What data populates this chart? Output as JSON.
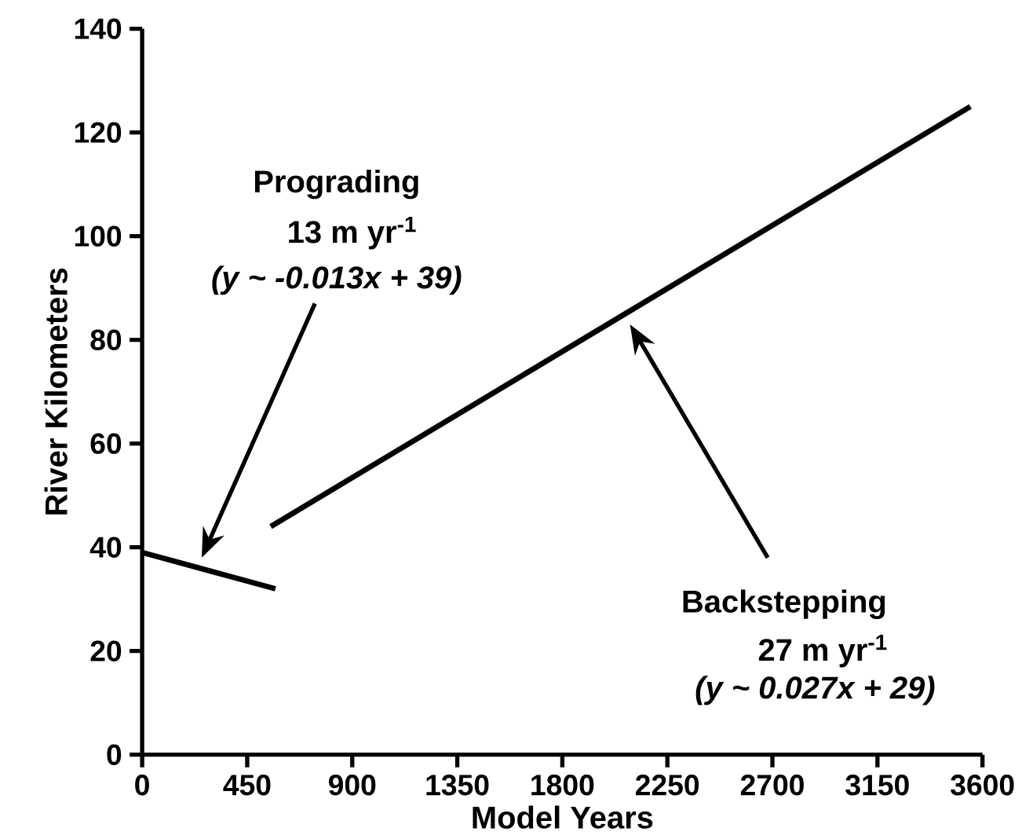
{
  "chart_data": {
    "type": "line",
    "xlabel": "Model Years",
    "ylabel": "River Kilometers",
    "series": [
      {
        "color": "#000000",
        "x": [
          0,
          571
        ],
        "values": [
          39,
          32
        ]
      },
      {
        "color": "#000000",
        "x": [
          551,
          3548
        ],
        "values": [
          44,
          125
        ]
      }
    ],
    "xlim": [
      0,
      3600
    ],
    "xticks": [
      0,
      450,
      900,
      1350,
      1800,
      2250,
      2700,
      3150,
      3600
    ],
    "ylim": [
      0,
      140
    ],
    "yticks": [
      0,
      20,
      40,
      60,
      80,
      100,
      120,
      140
    ],
    "grid": false,
    "marker": "none",
    "line_style": "solid",
    "annotations": [
      "Prograding",
      "13 m yr$^{-1}$",
      "(y ~ -0.013x + 39)",
      "Backstepping",
      "27 m yr$^{-1}$",
      "(y ~ 0.027x + 29)"
    ]
  }
}
